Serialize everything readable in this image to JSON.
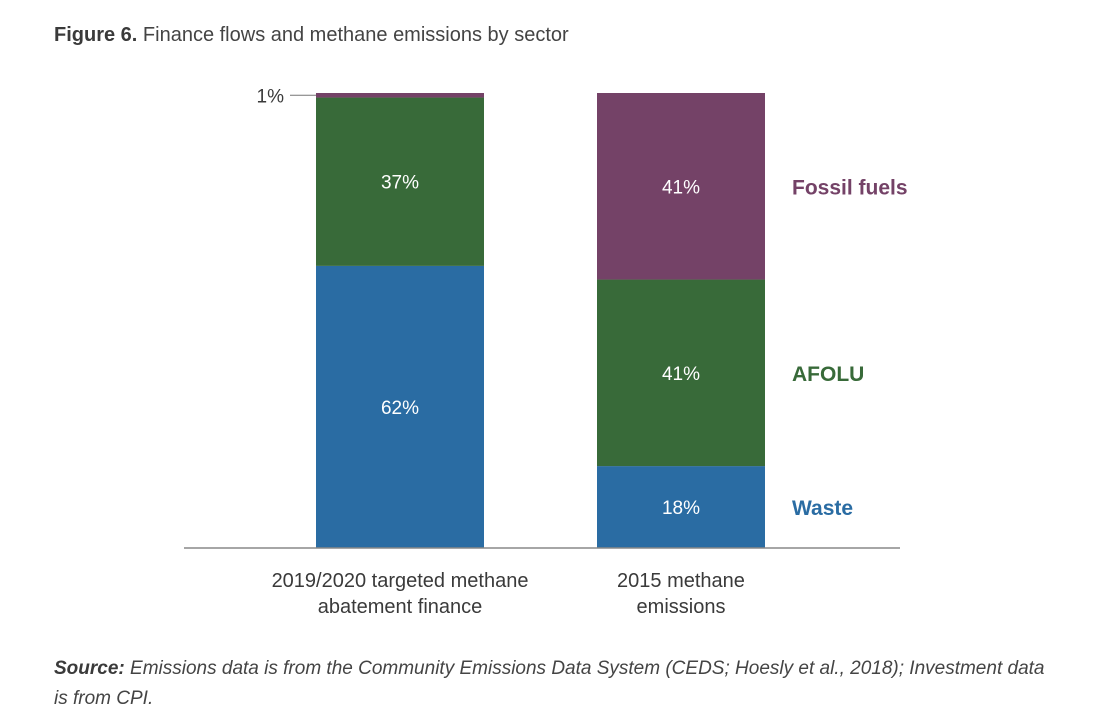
{
  "figure": {
    "title_lead": "Figure 6.",
    "title_text": " Finance flows and methane emissions by sector",
    "source_lead": "Source:",
    "source_text": " Emissions data is from the Community Emissions Data System (CEDS; Hoesly et al., 2018); Investment data is from CPI."
  },
  "chart_data": {
    "type": "bar",
    "stacked": true,
    "categories": [
      [
        "2019/2020 targeted methane",
        "abatement finance"
      ],
      [
        "2015 methane",
        "emissions"
      ]
    ],
    "series": [
      {
        "name": "Waste",
        "values": [
          62,
          18
        ],
        "labels": [
          "62%",
          "18%"
        ],
        "color": "#2a6ca3"
      },
      {
        "name": "AFOLU",
        "values": [
          37,
          41
        ],
        "labels": [
          "37%",
          "41%"
        ],
        "color": "#386a39"
      },
      {
        "name": "Fossil fuels",
        "values": [
          1,
          41
        ],
        "labels": [
          "1%",
          "41%"
        ],
        "color": "#744267"
      }
    ],
    "ylim": [
      0,
      100
    ],
    "grid": false,
    "legend": "right of second bar, aligned to segments",
    "label_color": "#ffffff"
  }
}
